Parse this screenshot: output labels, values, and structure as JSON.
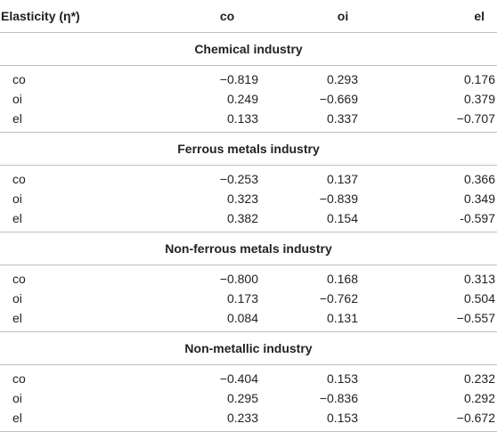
{
  "header": {
    "col0": "Elasticity (η*)",
    "col1": "co",
    "col2": "oi",
    "col3": "el"
  },
  "sections": [
    {
      "title": "Chemical industry",
      "rows": [
        {
          "label": "co",
          "co": "−0.819",
          "oi": "0.293",
          "el": "0.176"
        },
        {
          "label": "oi",
          "co": "0.249",
          "oi": "−0.669",
          "el": "0.379"
        },
        {
          "label": "el",
          "co": "0.133",
          "oi": "0.337",
          "el": "−0.707"
        }
      ]
    },
    {
      "title": "Ferrous metals industry",
      "rows": [
        {
          "label": "co",
          "co": "−0.253",
          "oi": "0.137",
          "el": "0.366"
        },
        {
          "label": "oi",
          "co": "0.323",
          "oi": "−0.839",
          "el": "0.349"
        },
        {
          "label": "el",
          "co": "0.382",
          "oi": "0.154",
          "el": "-0.597"
        }
      ]
    },
    {
      "title": "Non-ferrous metals industry",
      "rows": [
        {
          "label": "co",
          "co": "−0.800",
          "oi": "0.168",
          "el": "0.313"
        },
        {
          "label": "oi",
          "co": "0.173",
          "oi": "−0.762",
          "el": "0.504"
        },
        {
          "label": "el",
          "co": "0.084",
          "oi": "0.131",
          "el": "−0.557"
        }
      ]
    },
    {
      "title": "Non-metallic industry",
      "rows": [
        {
          "label": "co",
          "co": "−0.404",
          "oi": "0.153",
          "el": "0.232"
        },
        {
          "label": "oi",
          "co": "0.295",
          "oi": "−0.836",
          "el": "0.292"
        },
        {
          "label": "el",
          "co": "0.233",
          "oi": "0.153",
          "el": "−0.672"
        }
      ]
    }
  ]
}
